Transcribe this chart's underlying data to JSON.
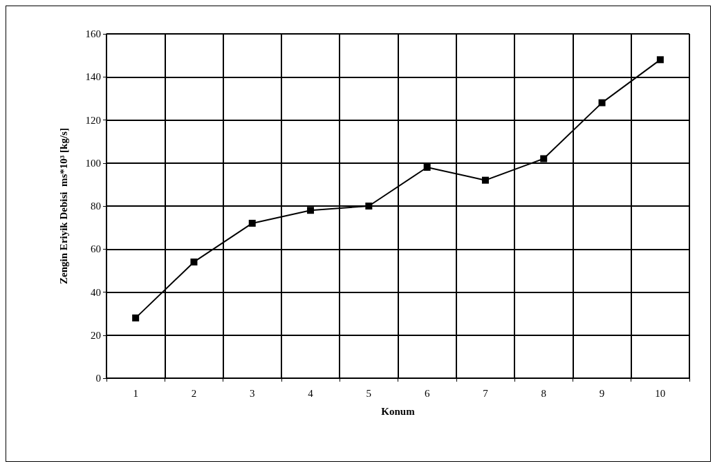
{
  "chart_data": {
    "type": "line",
    "xlabel": "Konum",
    "ylabel": "Zengin Eriyik Debisi  ms*10³ [kg/s]",
    "categories": [
      "1",
      "2",
      "3",
      "4",
      "5",
      "6",
      "7",
      "8",
      "9",
      "10"
    ],
    "series": [
      {
        "color": "#000000",
        "values": [
          28,
          54,
          72,
          78,
          80,
          98,
          92,
          102,
          128,
          148
        ]
      }
    ],
    "ylim": [
      0,
      160
    ],
    "yticks": [
      0,
      20,
      40,
      60,
      80,
      100,
      120,
      140,
      160
    ],
    "grid": true,
    "marker": "square",
    "line_style": "solid"
  }
}
